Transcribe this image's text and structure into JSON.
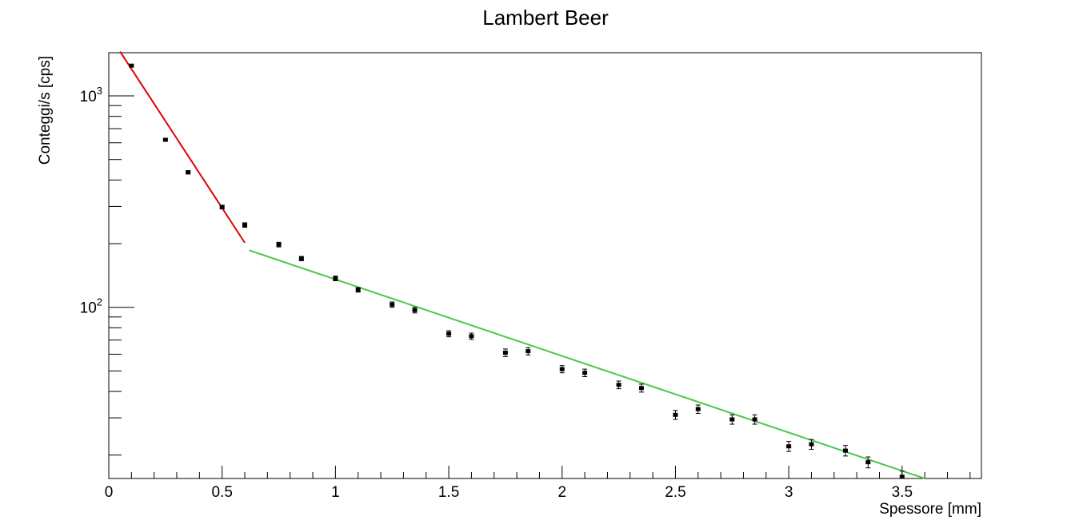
{
  "chart_data": {
    "type": "scatter",
    "title": "Lambert Beer",
    "xlabel": "Spessore [mm]",
    "ylabel": "Conteggi/s [cps]",
    "xlim": [
      0,
      3.85
    ],
    "ylim": [
      15.5,
      1600
    ],
    "yscale": "log",
    "grid": false,
    "legend": "none",
    "x_ticks": [
      {
        "value": 0,
        "label": "0"
      },
      {
        "value": 0.5,
        "label": "0.5"
      },
      {
        "value": 1,
        "label": "1"
      },
      {
        "value": 1.5,
        "label": "1.5"
      },
      {
        "value": 2,
        "label": "2"
      },
      {
        "value": 2.5,
        "label": "2.5"
      },
      {
        "value": 3,
        "label": "3"
      },
      {
        "value": 3.5,
        "label": "3.5"
      }
    ],
    "y_ticks": [
      {
        "value": 100,
        "base": "10",
        "exp": "2"
      },
      {
        "value": 1000,
        "base": "10",
        "exp": "3"
      }
    ],
    "series": [
      {
        "x": [
          0.1,
          0.25,
          0.35,
          0.5,
          0.6,
          0.75,
          0.85,
          1.0,
          1.1,
          1.25,
          1.35,
          1.5,
          1.6,
          1.75,
          1.85,
          2.0,
          2.1,
          2.25,
          2.35,
          2.5,
          2.6,
          2.75,
          2.85,
          3.0,
          3.1,
          3.25,
          3.35,
          3.5
        ],
        "y": [
          1390,
          620,
          435,
          298,
          245,
          198,
          170,
          137,
          121,
          103,
          97,
          75,
          73,
          61,
          62,
          51,
          49,
          43,
          41.5,
          31,
          33,
          29.5,
          29.5,
          22,
          22.5,
          21,
          18.5,
          15.8
        ],
        "yerr": [
          20,
          10,
          8,
          6,
          6,
          5,
          4,
          3.5,
          3,
          3,
          3,
          2.5,
          2.5,
          2.5,
          2.5,
          2,
          2,
          1.8,
          1.8,
          1.5,
          1.5,
          1.5,
          1.5,
          1.2,
          1.2,
          1.2,
          1.1,
          1.0
        ],
        "color": "#000000"
      }
    ],
    "fits": [
      {
        "color": "#e00000",
        "x": [
          0.05,
          0.6
        ],
        "y": [
          1620,
          202
        ]
      },
      {
        "color": "#4cc84c",
        "x": [
          0.62,
          3.6
        ],
        "y": [
          186,
          15.5
        ]
      }
    ]
  }
}
